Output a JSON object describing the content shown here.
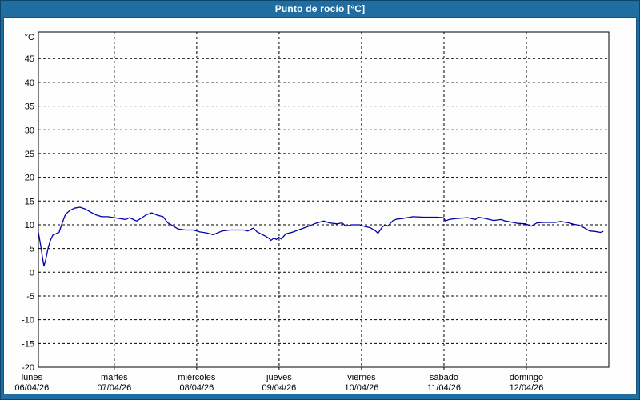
{
  "window": {
    "title": "Punto de rocío [°C]"
  },
  "colors": {
    "frame_blue": "#1f6da1",
    "frame_border": "#10456b",
    "panel_bg": "#fdfefd",
    "axis": "#000000",
    "grid": "#000000",
    "label_text": "#000000",
    "title_text": "#ffffff",
    "series_line": "#0000aa"
  },
  "chart_data": {
    "type": "line",
    "title": "Punto de rocío [°C]",
    "unit_label": "°C",
    "ylabel": "°C",
    "ylim": [
      -20,
      50.6
    ],
    "y_ticks": [
      45,
      40,
      35,
      30,
      25,
      20,
      15,
      10,
      5,
      0,
      -5,
      -10,
      -15,
      -20
    ],
    "x_range_hours": [
      1.9,
      168
    ],
    "x_gridline_hours": [
      24,
      48,
      72,
      96,
      120,
      144
    ],
    "x_days": [
      {
        "name": "lunes",
        "date": "06/04/26",
        "hour": 0
      },
      {
        "name": "martes",
        "date": "07/04/26",
        "hour": 24
      },
      {
        "name": "miércoles",
        "date": "08/04/26",
        "hour": 48
      },
      {
        "name": "jueves",
        "date": "09/04/26",
        "hour": 72
      },
      {
        "name": "viernes",
        "date": "10/04/26",
        "hour": 96
      },
      {
        "name": "sábado",
        "date": "11/04/26",
        "hour": 120
      },
      {
        "name": "domingo",
        "date": "12/04/26",
        "hour": 144
      }
    ],
    "grid": {
      "horizontal": true,
      "vertical": true,
      "style": "dashed"
    },
    "legend_position": "none",
    "series": [
      {
        "name": "Punto de rocío",
        "color": "#0000aa",
        "points_hours_celsius": [
          [
            1.9,
            8.4
          ],
          [
            2.6,
            5.5
          ],
          [
            3.1,
            3.0
          ],
          [
            3.5,
            1.3
          ],
          [
            4.0,
            2.5
          ],
          [
            4.7,
            5.0
          ],
          [
            5.4,
            6.7
          ],
          [
            6.1,
            7.8
          ],
          [
            7.0,
            8.1
          ],
          [
            7.9,
            8.4
          ],
          [
            8.9,
            10.5
          ],
          [
            9.8,
            12.2
          ],
          [
            11.0,
            13.0
          ],
          [
            12.4,
            13.5
          ],
          [
            14.0,
            13.7
          ],
          [
            15.6,
            13.3
          ],
          [
            17.0,
            12.7
          ],
          [
            18.6,
            12.1
          ],
          [
            20.3,
            11.7
          ],
          [
            22.1,
            11.7
          ],
          [
            24.0,
            11.5
          ],
          [
            25.6,
            11.3
          ],
          [
            27.3,
            11.1
          ],
          [
            28.4,
            11.5
          ],
          [
            29.8,
            11.0
          ],
          [
            30.5,
            10.8
          ],
          [
            31.9,
            11.4
          ],
          [
            33.3,
            12.1
          ],
          [
            34.9,
            12.5
          ],
          [
            36.6,
            12.0
          ],
          [
            38.2,
            11.7
          ],
          [
            39.6,
            10.4
          ],
          [
            41.0,
            9.8
          ],
          [
            42.6,
            9.1
          ],
          [
            44.7,
            8.9
          ],
          [
            47.0,
            8.9
          ],
          [
            48.0,
            8.7
          ],
          [
            48.9,
            8.5
          ],
          [
            50.7,
            8.3
          ],
          [
            52.8,
            7.9
          ],
          [
            53.8,
            8.2
          ],
          [
            55.4,
            8.7
          ],
          [
            57.7,
            8.9
          ],
          [
            60.1,
            8.9
          ],
          [
            61.7,
            8.9
          ],
          [
            62.9,
            8.7
          ],
          [
            64.5,
            9.3
          ],
          [
            65.6,
            8.5
          ],
          [
            68.0,
            7.6
          ],
          [
            69.1,
            7.1
          ],
          [
            69.6,
            6.7
          ],
          [
            70.5,
            7.2
          ],
          [
            71.2,
            6.9
          ],
          [
            71.9,
            7.4
          ],
          [
            72.6,
            7.0
          ],
          [
            74.0,
            8.1
          ],
          [
            75.7,
            8.4
          ],
          [
            78.0,
            9.0
          ],
          [
            80.3,
            9.6
          ],
          [
            82.6,
            10.3
          ],
          [
            85.0,
            10.8
          ],
          [
            86.6,
            10.4
          ],
          [
            88.9,
            10.2
          ],
          [
            90.3,
            10.4
          ],
          [
            91.5,
            9.7
          ],
          [
            93.1,
            10.0
          ],
          [
            95.4,
            10.0
          ],
          [
            97.1,
            9.6
          ],
          [
            98.5,
            9.4
          ],
          [
            100.1,
            8.7
          ],
          [
            100.8,
            8.2
          ],
          [
            102.0,
            9.5
          ],
          [
            102.9,
            10.0
          ],
          [
            103.6,
            9.7
          ],
          [
            105.2,
            10.9
          ],
          [
            106.4,
            11.2
          ],
          [
            107.8,
            11.3
          ],
          [
            111.0,
            11.7
          ],
          [
            114.1,
            11.6
          ],
          [
            118.0,
            11.6
          ],
          [
            119.9,
            11.5
          ],
          [
            120.4,
            10.8
          ],
          [
            121.5,
            11.1
          ],
          [
            123.4,
            11.3
          ],
          [
            126.9,
            11.5
          ],
          [
            128.0,
            11.3
          ],
          [
            129.2,
            11.1
          ],
          [
            129.9,
            11.6
          ],
          [
            132.2,
            11.3
          ],
          [
            134.5,
            10.9
          ],
          [
            136.6,
            11.1
          ],
          [
            137.8,
            10.8
          ],
          [
            140.1,
            10.5
          ],
          [
            141.5,
            10.3
          ],
          [
            143.8,
            10.2
          ],
          [
            144.7,
            9.9
          ],
          [
            145.4,
            9.7
          ],
          [
            147.1,
            10.4
          ],
          [
            148.9,
            10.5
          ],
          [
            152.4,
            10.5
          ],
          [
            154.0,
            10.7
          ],
          [
            156.4,
            10.4
          ],
          [
            157.8,
            10.1
          ],
          [
            159.4,
            9.9
          ],
          [
            161.0,
            9.3
          ],
          [
            162.4,
            8.7
          ],
          [
            164.0,
            8.6
          ],
          [
            165.6,
            8.4
          ],
          [
            166.3,
            8.6
          ]
        ]
      }
    ]
  }
}
